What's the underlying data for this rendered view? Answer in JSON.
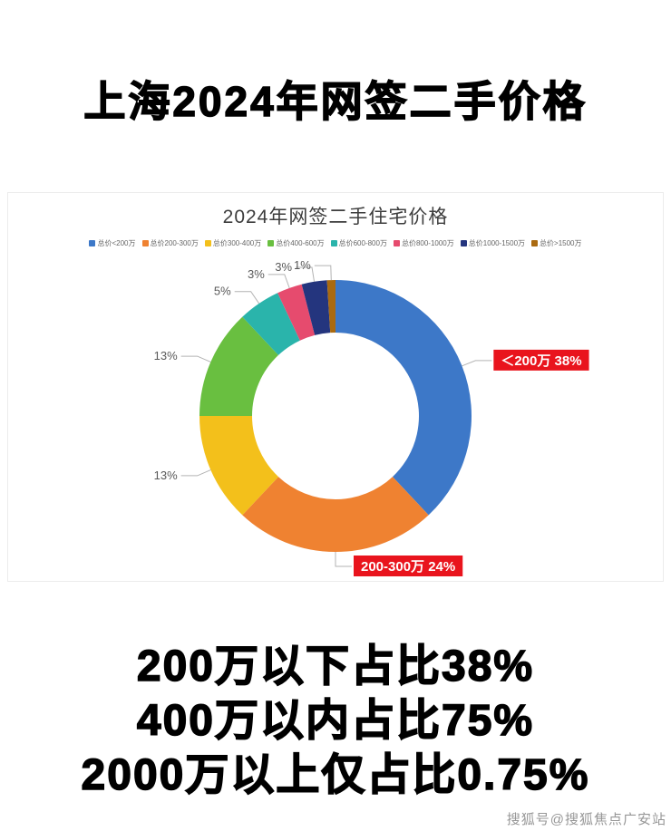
{
  "header": {
    "title": "上海2024年网签二手价格"
  },
  "chart_data": {
    "type": "pie",
    "donut": true,
    "title": "2024年网签二手住宅价格",
    "legend_position": "top",
    "emphasis_color": "#e9141d",
    "slices": [
      {
        "label": "总价<200万",
        "value": 38,
        "color": "#3d78c8",
        "callout": "＜200万 38%",
        "emphasis": true
      },
      {
        "label": "总价200-300万",
        "value": 24,
        "color": "#ef8231",
        "callout": "200-300万 24%",
        "emphasis": true
      },
      {
        "label": "总价300-400万",
        "value": 13,
        "color": "#f3c01b",
        "callout": "13%",
        "emphasis": false
      },
      {
        "label": "总价400-600万",
        "value": 13,
        "color": "#69bf40",
        "callout": "13%",
        "emphasis": false
      },
      {
        "label": "总价600-800万",
        "value": 5,
        "color": "#2ab4ab",
        "callout": "5%",
        "emphasis": false
      },
      {
        "label": "总价800-1000万",
        "value": 3,
        "color": "#e64b6e",
        "callout": "3%",
        "emphasis": false
      },
      {
        "label": "总价1000-1500万",
        "value": 3,
        "color": "#24357e",
        "callout": "3%",
        "emphasis": false
      },
      {
        "label": "总价>1500万",
        "value": 1,
        "color": "#aa6a10",
        "callout": "1%",
        "emphasis": false
      }
    ]
  },
  "summary": {
    "lines": [
      "200万以下占比38%",
      "400万以内占比75%",
      "2000万以上仅占比0.75%"
    ]
  },
  "footer": {
    "watermark": "搜狐号@搜狐焦点广安站"
  }
}
